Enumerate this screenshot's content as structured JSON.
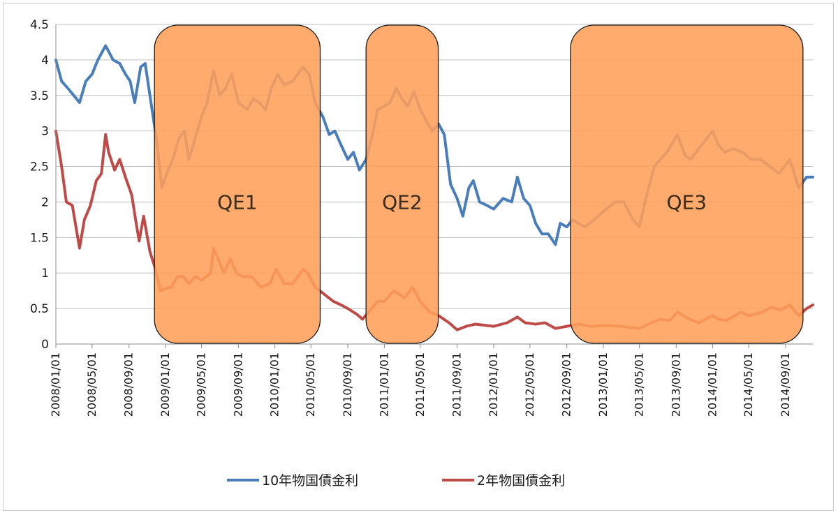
{
  "chart_data": {
    "type": "line",
    "ylim": [
      0,
      4.5
    ],
    "y_ticks": [
      "0",
      "0.5",
      "1",
      "1.5",
      "2",
      "2.5",
      "3",
      "3.5",
      "4",
      "4.5"
    ],
    "x_ticks": [
      "2008/01/01",
      "2008/05/01",
      "2008/09/01",
      "2009/01/01",
      "2009/05/01",
      "2009/09/01",
      "2010/01/01",
      "2010/05/01",
      "2010/09/01",
      "2011/01/01",
      "2011/05/01",
      "2011/09/01",
      "2012/01/01",
      "2012/05/01",
      "2012/09/01",
      "2013/01/01",
      "2013/05/01",
      "2013/09/01",
      "2014/01/01",
      "2014/05/01",
      "2014/09/01"
    ],
    "x_range": [
      "2008/01/01",
      "2014/12/01"
    ],
    "grid": true,
    "legend_position": "bottom",
    "series": [
      {
        "name": "10年物国債金利",
        "color": "#4a7ebb",
        "points": [
          [
            "2008/01/01",
            4.0
          ],
          [
            "2008/01/20",
            3.7
          ],
          [
            "2008/02/10",
            3.6
          ],
          [
            "2008/03/01",
            3.5
          ],
          [
            "2008/03/20",
            3.4
          ],
          [
            "2008/04/10",
            3.7
          ],
          [
            "2008/05/01",
            3.8
          ],
          [
            "2008/05/20",
            4.0
          ],
          [
            "2008/06/15",
            4.2
          ],
          [
            "2008/07/10",
            4.0
          ],
          [
            "2008/08/01",
            3.95
          ],
          [
            "2008/08/20",
            3.8
          ],
          [
            "2008/09/05",
            3.7
          ],
          [
            "2008/09/20",
            3.4
          ],
          [
            "2008/10/10",
            3.9
          ],
          [
            "2008/10/25",
            3.95
          ],
          [
            "2008/11/10",
            3.5
          ],
          [
            "2008/12/01",
            2.9
          ],
          [
            "2008/12/20",
            2.2
          ],
          [
            "2009/01/05",
            2.4
          ],
          [
            "2009/01/25",
            2.6
          ],
          [
            "2009/02/15",
            2.9
          ],
          [
            "2009/03/05",
            3.0
          ],
          [
            "2009/03/20",
            2.6
          ],
          [
            "2009/04/10",
            2.9
          ],
          [
            "2009/05/01",
            3.2
          ],
          [
            "2009/05/20",
            3.4
          ],
          [
            "2009/06/10",
            3.85
          ],
          [
            "2009/07/01",
            3.5
          ],
          [
            "2009/07/20",
            3.6
          ],
          [
            "2009/08/10",
            3.8
          ],
          [
            "2009/09/01",
            3.4
          ],
          [
            "2009/10/01",
            3.3
          ],
          [
            "2009/10/20",
            3.45
          ],
          [
            "2009/11/10",
            3.4
          ],
          [
            "2009/12/01",
            3.3
          ],
          [
            "2009/12/20",
            3.6
          ],
          [
            "2010/01/10",
            3.8
          ],
          [
            "2010/02/01",
            3.65
          ],
          [
            "2010/03/01",
            3.7
          ],
          [
            "2010/04/05",
            3.9
          ],
          [
            "2010/04/25",
            3.8
          ],
          [
            "2010/05/15",
            3.4
          ],
          [
            "2010/06/10",
            3.2
          ],
          [
            "2010/07/01",
            2.95
          ],
          [
            "2010/07/20",
            3.0
          ],
          [
            "2010/08/10",
            2.8
          ],
          [
            "2010/09/01",
            2.6
          ],
          [
            "2010/09/20",
            2.7
          ],
          [
            "2010/10/10",
            2.45
          ],
          [
            "2010/11/01",
            2.6
          ],
          [
            "2010/11/20",
            2.9
          ],
          [
            "2010/12/10",
            3.3
          ],
          [
            "2011/01/01",
            3.35
          ],
          [
            "2011/01/20",
            3.4
          ],
          [
            "2011/02/10",
            3.6
          ],
          [
            "2011/03/01",
            3.45
          ],
          [
            "2011/03/20",
            3.35
          ],
          [
            "2011/04/10",
            3.55
          ],
          [
            "2011/05/01",
            3.3
          ],
          [
            "2011/05/20",
            3.15
          ],
          [
            "2011/06/10",
            3.0
          ],
          [
            "2011/07/01",
            3.1
          ],
          [
            "2011/07/20",
            2.95
          ],
          [
            "2011/08/10",
            2.25
          ],
          [
            "2011/09/01",
            2.05
          ],
          [
            "2011/09/20",
            1.8
          ],
          [
            "2011/10/10",
            2.2
          ],
          [
            "2011/10/25",
            2.3
          ],
          [
            "2011/11/15",
            2.0
          ],
          [
            "2011/12/10",
            1.95
          ],
          [
            "2012/01/01",
            1.9
          ],
          [
            "2012/02/01",
            2.05
          ],
          [
            "2012/03/01",
            2.0
          ],
          [
            "2012/03/20",
            2.35
          ],
          [
            "2012/04/10",
            2.05
          ],
          [
            "2012/05/01",
            1.95
          ],
          [
            "2012/05/20",
            1.7
          ],
          [
            "2012/06/10",
            1.55
          ],
          [
            "2012/07/01",
            1.55
          ],
          [
            "2012/07/25",
            1.4
          ],
          [
            "2012/08/10",
            1.7
          ],
          [
            "2012/09/01",
            1.65
          ],
          [
            "2012/09/20",
            1.75
          ],
          [
            "2012/10/10",
            1.7
          ],
          [
            "2012/11/01",
            1.65
          ],
          [
            "2012/12/01",
            1.75
          ],
          [
            "2013/01/10",
            1.9
          ],
          [
            "2013/02/10",
            2.0
          ],
          [
            "2013/03/10",
            2.0
          ],
          [
            "2013/04/10",
            1.75
          ],
          [
            "2013/05/01",
            1.65
          ],
          [
            "2013/05/20",
            2.0
          ],
          [
            "2013/06/20",
            2.5
          ],
          [
            "2013/07/10",
            2.6
          ],
          [
            "2013/08/01",
            2.7
          ],
          [
            "2013/09/05",
            2.95
          ],
          [
            "2013/10/01",
            2.65
          ],
          [
            "2013/10/20",
            2.6
          ],
          [
            "2013/11/15",
            2.75
          ],
          [
            "2013/12/31",
            3.0
          ],
          [
            "2014/01/20",
            2.8
          ],
          [
            "2014/02/10",
            2.7
          ],
          [
            "2014/03/10",
            2.75
          ],
          [
            "2014/04/10",
            2.7
          ],
          [
            "2014/05/10",
            2.6
          ],
          [
            "2014/06/10",
            2.6
          ],
          [
            "2014/07/10",
            2.5
          ],
          [
            "2014/08/10",
            2.4
          ],
          [
            "2014/09/15",
            2.6
          ],
          [
            "2014/10/15",
            2.2
          ],
          [
            "2014/11/10",
            2.35
          ],
          [
            "2014/12/01",
            2.35
          ]
        ]
      },
      {
        "name": "2年物国債金利",
        "color": "#be4b48",
        "points": [
          [
            "2008/01/01",
            3.0
          ],
          [
            "2008/01/20",
            2.5
          ],
          [
            "2008/02/05",
            2.0
          ],
          [
            "2008/02/25",
            1.95
          ],
          [
            "2008/03/10",
            1.6
          ],
          [
            "2008/03/20",
            1.35
          ],
          [
            "2008/04/05",
            1.75
          ],
          [
            "2008/04/25",
            1.95
          ],
          [
            "2008/05/15",
            2.3
          ],
          [
            "2008/06/01",
            2.4
          ],
          [
            "2008/06/15",
            2.95
          ],
          [
            "2008/06/25",
            2.7
          ],
          [
            "2008/07/15",
            2.45
          ],
          [
            "2008/08/01",
            2.6
          ],
          [
            "2008/08/20",
            2.35
          ],
          [
            "2008/09/10",
            2.1
          ],
          [
            "2008/09/25",
            1.7
          ],
          [
            "2008/10/05",
            1.45
          ],
          [
            "2008/10/20",
            1.8
          ],
          [
            "2008/11/10",
            1.3
          ],
          [
            "2008/11/25",
            1.1
          ],
          [
            "2008/12/15",
            0.75
          ],
          [
            "2009/01/01",
            0.78
          ],
          [
            "2009/01/20",
            0.8
          ],
          [
            "2009/02/10",
            0.95
          ],
          [
            "2009/03/01",
            0.95
          ],
          [
            "2009/03/20",
            0.85
          ],
          [
            "2009/04/10",
            0.95
          ],
          [
            "2009/05/01",
            0.9
          ],
          [
            "2009/06/01",
            1.0
          ],
          [
            "2009/06/10",
            1.35
          ],
          [
            "2009/06/25",
            1.2
          ],
          [
            "2009/07/15",
            1.0
          ],
          [
            "2009/08/05",
            1.2
          ],
          [
            "2009/08/25",
            1.0
          ],
          [
            "2009/09/15",
            0.95
          ],
          [
            "2009/10/15",
            0.95
          ],
          [
            "2009/11/15",
            0.8
          ],
          [
            "2009/12/15",
            0.85
          ],
          [
            "2010/01/05",
            1.05
          ],
          [
            "2010/02/01",
            0.85
          ],
          [
            "2010/03/01",
            0.85
          ],
          [
            "2010/04/05",
            1.05
          ],
          [
            "2010/04/20",
            1.0
          ],
          [
            "2010/05/15",
            0.8
          ],
          [
            "2010/06/15",
            0.7
          ],
          [
            "2010/07/15",
            0.6
          ],
          [
            "2010/08/10",
            0.55
          ],
          [
            "2010/09/01",
            0.5
          ],
          [
            "2010/10/01",
            0.42
          ],
          [
            "2010/10/20",
            0.35
          ],
          [
            "2010/11/10",
            0.45
          ],
          [
            "2010/12/10",
            0.6
          ],
          [
            "2011/01/01",
            0.6
          ],
          [
            "2011/02/01",
            0.75
          ],
          [
            "2011/02/20",
            0.7
          ],
          [
            "2011/03/10",
            0.65
          ],
          [
            "2011/04/05",
            0.8
          ],
          [
            "2011/05/01",
            0.6
          ],
          [
            "2011/06/01",
            0.45
          ],
          [
            "2011/07/01",
            0.4
          ],
          [
            "2011/08/05",
            0.3
          ],
          [
            "2011/09/01",
            0.2
          ],
          [
            "2011/10/01",
            0.25
          ],
          [
            "2011/11/01",
            0.28
          ],
          [
            "2012/01/01",
            0.25
          ],
          [
            "2012/02/15",
            0.3
          ],
          [
            "2012/03/20",
            0.38
          ],
          [
            "2012/04/15",
            0.3
          ],
          [
            "2012/05/20",
            0.28
          ],
          [
            "2012/06/20",
            0.3
          ],
          [
            "2012/07/25",
            0.22
          ],
          [
            "2012/09/01",
            0.25
          ],
          [
            "2012/10/10",
            0.28
          ],
          [
            "2012/11/20",
            0.25
          ],
          [
            "2013/01/10",
            0.26
          ],
          [
            "2013/03/01",
            0.25
          ],
          [
            "2013/05/01",
            0.22
          ],
          [
            "2013/06/10",
            0.3
          ],
          [
            "2013/07/10",
            0.35
          ],
          [
            "2013/08/10",
            0.33
          ],
          [
            "2013/09/05",
            0.45
          ],
          [
            "2013/10/15",
            0.35
          ],
          [
            "2013/11/15",
            0.3
          ],
          [
            "2013/12/31",
            0.4
          ],
          [
            "2014/01/20",
            0.35
          ],
          [
            "2014/02/15",
            0.33
          ],
          [
            "2014/04/05",
            0.45
          ],
          [
            "2014/05/01",
            0.4
          ],
          [
            "2014/06/15",
            0.45
          ],
          [
            "2014/07/15",
            0.52
          ],
          [
            "2014/08/15",
            0.48
          ],
          [
            "2014/09/15",
            0.55
          ],
          [
            "2014/10/15",
            0.4
          ],
          [
            "2014/11/10",
            0.5
          ],
          [
            "2014/12/01",
            0.55
          ]
        ]
      }
    ],
    "annotations": [
      {
        "label": "QE1",
        "start": "2008/11/25",
        "end": "2010/06/01",
        "color": "#ff9f5a"
      },
      {
        "label": "QE2",
        "start": "2010/11/01",
        "end": "2011/06/30",
        "color": "#ff9f5a"
      },
      {
        "label": "QE3",
        "start": "2012/09/13",
        "end": "2014/10/29",
        "color": "#ff9f5a"
      }
    ]
  }
}
